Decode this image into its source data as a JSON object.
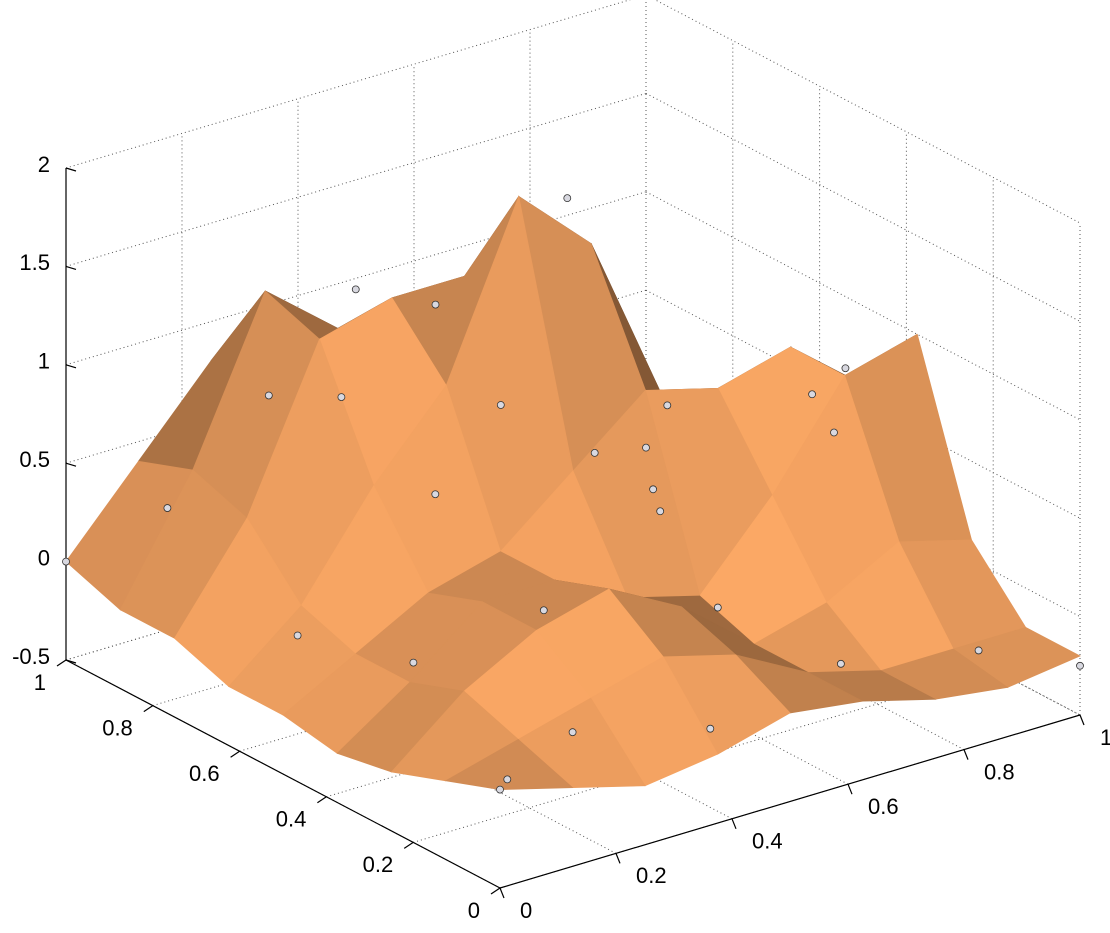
{
  "chart_data": {
    "type": "surface3d",
    "xlim": [
      0,
      1
    ],
    "ylim": [
      0,
      1
    ],
    "zlim": [
      -0.5,
      2
    ],
    "xticks": [
      0,
      0.2,
      0.4,
      0.6,
      0.8,
      1
    ],
    "yticks": [
      0,
      0.2,
      0.4,
      0.6,
      0.8,
      1
    ],
    "zticks": [
      -0.5,
      0,
      0.5,
      1,
      1.5,
      2
    ],
    "grid": true,
    "surface_color": "#f0a060",
    "surface": {
      "x": [
        0,
        0.125,
        0.25,
        0.375,
        0.5,
        0.625,
        0.75,
        0.875,
        1
      ],
      "y": [
        0,
        0.125,
        0.25,
        0.375,
        0.5,
        0.625,
        0.75,
        0.875,
        1
      ],
      "z": [
        [
          0.0,
          -0.1,
          -0.2,
          -0.15,
          -0.05,
          -0.1,
          -0.2,
          -0.25,
          -0.2
        ],
        [
          -0.1,
          0.0,
          0.1,
          0.2,
          0.1,
          -0.1,
          -0.2,
          -0.2,
          -0.2
        ],
        [
          -0.2,
          0.1,
          0.3,
          0.4,
          0.2,
          -0.1,
          0.0,
          0.2,
          0.1
        ],
        [
          -0.25,
          0.0,
          0.3,
          0.3,
          0.1,
          0.0,
          0.4,
          0.9,
          1.0
        ],
        [
          -0.2,
          0.0,
          0.2,
          0.3,
          0.6,
          0.9,
          0.8,
          0.9,
          0.6
        ],
        [
          -0.2,
          0.1,
          0.6,
          1.0,
          1.85,
          1.5,
          0.6,
          0.3,
          0.1
        ],
        [
          -0.1,
          0.4,
          1.2,
          1.3,
          1.3,
          0.9,
          0.3,
          0.0,
          -0.2
        ],
        [
          -0.1,
          0.5,
          1.3,
          1.0,
          0.7,
          0.3,
          0.0,
          -0.2,
          -0.3
        ],
        [
          0.0,
          0.4,
          0.8,
          0.5,
          0.2,
          0.0,
          -0.2,
          -0.3,
          -0.3
        ]
      ]
    },
    "points": {
      "color": "#d8d8e0",
      "x": [
        0.55,
        0.32,
        0.05,
        0.0,
        0.2,
        0.4,
        0.3,
        0.6,
        0.8,
        0.85,
        0.9,
        1.0,
        0.95,
        0.7,
        0.1,
        0.2,
        0.45,
        0.0,
        0.1,
        0.4,
        0.6,
        0.8,
        1.0,
        0.7,
        0.15,
        0.5,
        0.9,
        0.3
      ],
      "y": [
        0.58,
        0.76,
        0.05,
        0.0,
        0.1,
        0.05,
        0.3,
        0.3,
        0.35,
        0.34,
        0.1,
        0.0,
        0.5,
        0.55,
        0.6,
        0.8,
        0.75,
        1.0,
        0.9,
        0.9,
        0.8,
        0.7,
        1.0,
        0.15,
        0.4,
        0.45,
        0.85,
        0.55
      ],
      "z": [
        1.85,
        1.38,
        -0.05,
        0.0,
        0.0,
        -0.1,
        0.3,
        0.05,
        0.9,
        1.0,
        -0.2,
        -0.25,
        0.4,
        0.7,
        0.0,
        0.9,
        1.2,
        0.0,
        0.3,
        0.6,
        0.5,
        -0.1,
        -0.3,
        -0.15,
        0.05,
        0.75,
        -0.25,
        0.6
      ]
    }
  }
}
